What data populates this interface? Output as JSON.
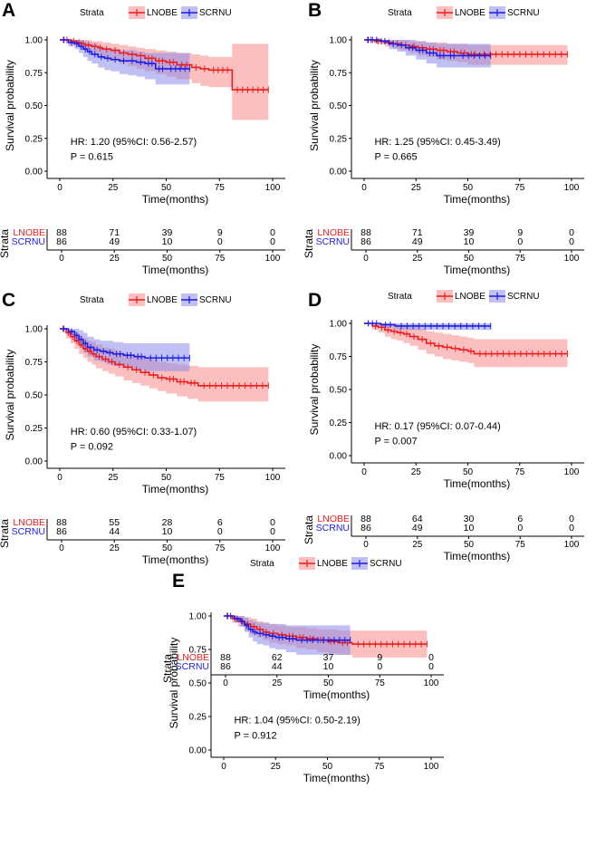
{
  "colors": {
    "lnobe": "#ee1c1c",
    "lnobe_band": "#f88a8a",
    "scrnu": "#1c1ce6",
    "scrnu_band": "#8c8cea",
    "axis": "#000000",
    "text": "#000000"
  },
  "chart_data": [
    {
      "type": "line",
      "panel": "A",
      "legend_title": "Strata",
      "legend_labels": [
        "LNOBE",
        "SCRNU"
      ],
      "xlabel": "Time(months)",
      "ylabel": "Survival probability",
      "xlim": [
        0,
        100
      ],
      "ylim": [
        0,
        1
      ],
      "xticks": [
        0,
        25,
        50,
        75,
        100
      ],
      "yticks": [
        0.0,
        0.25,
        0.5,
        0.75,
        1.0
      ],
      "ytick_labels": [
        "0.00",
        "0.25",
        "0.50",
        "0.75",
        "1.00"
      ],
      "hr_text": "HR: 1.20 (95%CI: 0.56-2.57)",
      "p_text": "P = 0.615",
      "series": [
        {
          "name": "LNOBE",
          "x": [
            0,
            5,
            8,
            10,
            12,
            15,
            18,
            20,
            24,
            28,
            32,
            36,
            40,
            45,
            50,
            55,
            62,
            66,
            70,
            81,
            98
          ],
          "y": [
            1.0,
            0.99,
            0.98,
            0.97,
            0.96,
            0.95,
            0.94,
            0.93,
            0.92,
            0.9,
            0.89,
            0.88,
            0.86,
            0.84,
            0.83,
            0.81,
            0.79,
            0.78,
            0.77,
            0.62,
            0.62
          ],
          "lower": [
            1.0,
            0.97,
            0.95,
            0.93,
            0.91,
            0.9,
            0.88,
            0.86,
            0.84,
            0.82,
            0.8,
            0.78,
            0.76,
            0.74,
            0.72,
            0.7,
            0.67,
            0.65,
            0.64,
            0.39,
            0.39
          ],
          "upper": [
            1.0,
            1.0,
            1.0,
            1.0,
            1.0,
            0.99,
            0.99,
            0.98,
            0.97,
            0.96,
            0.95,
            0.94,
            0.93,
            0.92,
            0.91,
            0.9,
            0.89,
            0.88,
            0.87,
            0.97,
            0.97
          ]
        },
        {
          "name": "SCRNU",
          "x": [
            0,
            4,
            7,
            9,
            11,
            13,
            15,
            18,
            21,
            24,
            28,
            32,
            36,
            40,
            45,
            50,
            61
          ],
          "y": [
            1.0,
            0.98,
            0.97,
            0.95,
            0.93,
            0.91,
            0.89,
            0.87,
            0.86,
            0.85,
            0.84,
            0.84,
            0.83,
            0.82,
            0.78,
            0.78,
            0.78
          ],
          "lower": [
            1.0,
            0.95,
            0.93,
            0.9,
            0.87,
            0.84,
            0.82,
            0.79,
            0.77,
            0.76,
            0.74,
            0.73,
            0.72,
            0.7,
            0.66,
            0.66,
            0.66
          ],
          "upper": [
            1.0,
            1.0,
            1.0,
            1.0,
            0.99,
            0.98,
            0.97,
            0.95,
            0.94,
            0.93,
            0.92,
            0.92,
            0.91,
            0.9,
            0.9,
            0.9,
            0.9
          ]
        }
      ],
      "risk_table": {
        "labels": [
          "LNOBE",
          "SCRNU"
        ],
        "times": [
          0,
          25,
          50,
          75,
          100
        ],
        "rows": [
          [
            "88",
            "71",
            "39",
            "9",
            "0"
          ],
          [
            "86",
            "49",
            "10",
            "0",
            "0"
          ]
        ],
        "ylabel": "Strata",
        "xlabel": "Time(months)"
      }
    },
    {
      "type": "line",
      "panel": "B",
      "legend_title": "Strata",
      "legend_labels": [
        "LNOBE",
        "SCRNU"
      ],
      "xlabel": "Time(months)",
      "ylabel": "Survival probability",
      "xlim": [
        0,
        100
      ],
      "ylim": [
        0,
        1
      ],
      "xticks": [
        0,
        25,
        50,
        75,
        100
      ],
      "yticks": [
        0.0,
        0.25,
        0.5,
        0.75,
        1.0
      ],
      "ytick_labels": [
        "0.00",
        "0.25",
        "0.50",
        "0.75",
        "1.00"
      ],
      "hr_text": "HR: 1.25 (95%CI: 0.45-3.49)",
      "p_text": "P = 0.665",
      "series": [
        {
          "name": "LNOBE",
          "x": [
            0,
            5,
            10,
            14,
            18,
            22,
            26,
            30,
            35,
            40,
            45,
            50,
            55,
            98
          ],
          "y": [
            1.0,
            0.99,
            0.98,
            0.97,
            0.96,
            0.95,
            0.94,
            0.93,
            0.92,
            0.91,
            0.9,
            0.89,
            0.89,
            0.89
          ],
          "lower": [
            1.0,
            0.97,
            0.95,
            0.93,
            0.92,
            0.9,
            0.88,
            0.87,
            0.85,
            0.84,
            0.83,
            0.81,
            0.81,
            0.81
          ],
          "upper": [
            1.0,
            1.0,
            1.0,
            1.0,
            1.0,
            0.99,
            0.99,
            0.98,
            0.98,
            0.97,
            0.97,
            0.96,
            0.96,
            0.96
          ]
        },
        {
          "name": "SCRNU",
          "x": [
            0,
            8,
            12,
            16,
            20,
            25,
            30,
            35,
            40,
            45,
            61
          ],
          "y": [
            1.0,
            0.99,
            0.97,
            0.96,
            0.94,
            0.92,
            0.9,
            0.88,
            0.88,
            0.88,
            0.88
          ],
          "lower": [
            1.0,
            0.97,
            0.93,
            0.91,
            0.88,
            0.85,
            0.82,
            0.79,
            0.79,
            0.79,
            0.79
          ],
          "upper": [
            1.0,
            1.0,
            1.0,
            1.0,
            1.0,
            0.99,
            0.98,
            0.97,
            0.97,
            0.97,
            0.97
          ]
        }
      ],
      "risk_table": {
        "labels": [
          "LNOBE",
          "SCRNU"
        ],
        "times": [
          0,
          25,
          50,
          75,
          100
        ],
        "rows": [
          [
            "88",
            "71",
            "39",
            "9",
            "0"
          ],
          [
            "86",
            "49",
            "10",
            "0",
            "0"
          ]
        ],
        "ylabel": "Strata",
        "xlabel": "Time(months)"
      }
    },
    {
      "type": "line",
      "panel": "C",
      "legend_title": "Strata",
      "legend_labels": [
        "LNOBE",
        "SCRNU"
      ],
      "xlabel": "Time(months)",
      "ylabel": "Survival probability",
      "xlim": [
        0,
        100
      ],
      "ylim": [
        0,
        1
      ],
      "xticks": [
        0,
        25,
        50,
        75,
        100
      ],
      "yticks": [
        0.0,
        0.25,
        0.5,
        0.75,
        1.0
      ],
      "ytick_labels": [
        "0.00",
        "0.25",
        "0.50",
        "0.75",
        "1.00"
      ],
      "hr_text": "HR: 0.60 (95%CI: 0.33-1.07)",
      "p_text": "P = 0.092",
      "series": [
        {
          "name": "LNOBE",
          "x": [
            0,
            3,
            5,
            7,
            9,
            11,
            13,
            15,
            17,
            20,
            23,
            26,
            30,
            34,
            38,
            42,
            46,
            50,
            55,
            60,
            65,
            98
          ],
          "y": [
            1.0,
            0.97,
            0.94,
            0.91,
            0.88,
            0.85,
            0.83,
            0.81,
            0.79,
            0.77,
            0.75,
            0.73,
            0.71,
            0.69,
            0.67,
            0.65,
            0.63,
            0.62,
            0.6,
            0.59,
            0.57,
            0.57
          ],
          "lower": [
            1.0,
            0.93,
            0.89,
            0.85,
            0.81,
            0.78,
            0.75,
            0.73,
            0.7,
            0.68,
            0.66,
            0.64,
            0.61,
            0.59,
            0.57,
            0.55,
            0.53,
            0.51,
            0.49,
            0.47,
            0.45,
            0.45
          ],
          "upper": [
            1.0,
            1.0,
            0.99,
            0.97,
            0.95,
            0.93,
            0.91,
            0.9,
            0.88,
            0.86,
            0.85,
            0.83,
            0.81,
            0.8,
            0.78,
            0.77,
            0.75,
            0.74,
            0.73,
            0.72,
            0.71,
            0.71
          ]
        },
        {
          "name": "SCRNU",
          "x": [
            0,
            4,
            7,
            9,
            11,
            13,
            16,
            19,
            22,
            25,
            30,
            35,
            40,
            61
          ],
          "y": [
            1.0,
            0.98,
            0.95,
            0.92,
            0.89,
            0.86,
            0.84,
            0.83,
            0.82,
            0.81,
            0.8,
            0.79,
            0.78,
            0.78
          ],
          "lower": [
            1.0,
            0.95,
            0.9,
            0.86,
            0.82,
            0.79,
            0.76,
            0.75,
            0.73,
            0.72,
            0.71,
            0.69,
            0.68,
            0.68
          ],
          "upper": [
            1.0,
            1.0,
            1.0,
            0.99,
            0.97,
            0.94,
            0.92,
            0.91,
            0.91,
            0.9,
            0.89,
            0.89,
            0.89,
            0.89
          ]
        }
      ],
      "risk_table": {
        "labels": [
          "LNOBE",
          "SCRNU"
        ],
        "times": [
          0,
          25,
          50,
          75,
          100
        ],
        "rows": [
          [
            "88",
            "55",
            "28",
            "6",
            "0"
          ],
          [
            "86",
            "44",
            "10",
            "0",
            "0"
          ]
        ],
        "ylabel": "Strata",
        "xlabel": "Time(months)"
      }
    },
    {
      "type": "line",
      "panel": "D",
      "legend_title": "Strata",
      "legend_labels": [
        "LNOBE",
        "SCRNU"
      ],
      "xlabel": "Time(months)",
      "ylabel": "Survival probability",
      "xlim": [
        0,
        100
      ],
      "ylim": [
        0,
        1
      ],
      "xticks": [
        0,
        25,
        50,
        75,
        100
      ],
      "yticks": [
        0.0,
        0.25,
        0.5,
        0.75,
        1.0
      ],
      "ytick_labels": [
        "0.00",
        "0.25",
        "0.50",
        "0.75",
        "1.00"
      ],
      "hr_text": "HR: 0.17 (95%CI: 0.07-0.44)",
      "p_text": "P = 0.007",
      "series": [
        {
          "name": "LNOBE",
          "x": [
            0,
            4,
            7,
            10,
            13,
            16,
            19,
            22,
            26,
            30,
            34,
            38,
            42,
            46,
            50,
            53,
            98
          ],
          "y": [
            1.0,
            0.98,
            0.97,
            0.95,
            0.94,
            0.93,
            0.92,
            0.9,
            0.88,
            0.85,
            0.83,
            0.82,
            0.81,
            0.8,
            0.79,
            0.77,
            0.77
          ],
          "lower": [
            1.0,
            0.95,
            0.93,
            0.9,
            0.88,
            0.87,
            0.85,
            0.83,
            0.8,
            0.77,
            0.75,
            0.73,
            0.72,
            0.71,
            0.7,
            0.67,
            0.67
          ],
          "upper": [
            1.0,
            1.0,
            1.0,
            1.0,
            0.99,
            0.99,
            0.98,
            0.97,
            0.96,
            0.94,
            0.93,
            0.92,
            0.91,
            0.9,
            0.89,
            0.88,
            0.88
          ]
        },
        {
          "name": "SCRNU",
          "x": [
            0,
            8,
            15,
            61
          ],
          "y": [
            1.0,
            0.99,
            0.98,
            0.98
          ],
          "lower": [
            1.0,
            0.97,
            0.95,
            0.95
          ],
          "upper": [
            1.0,
            1.0,
            1.0,
            1.0
          ]
        }
      ],
      "risk_table": {
        "labels": [
          "LNOBE",
          "SCRNU"
        ],
        "times": [
          0,
          25,
          50,
          75,
          100
        ],
        "rows": [
          [
            "88",
            "64",
            "30",
            "6",
            "0"
          ],
          [
            "86",
            "49",
            "10",
            "0",
            "0"
          ]
        ],
        "ylabel": "Strata",
        "xlabel": "Time(months)"
      }
    },
    {
      "type": "line",
      "panel": "E",
      "legend_title": "Strata",
      "legend_labels": [
        "LNOBE",
        "SCRNU"
      ],
      "xlabel": "Time(months)",
      "ylabel": "Survival probability",
      "xlim": [
        0,
        100
      ],
      "ylim": [
        0,
        1
      ],
      "xticks": [
        0,
        25,
        50,
        75,
        100
      ],
      "yticks": [
        0.0,
        0.25,
        0.5,
        0.75,
        1.0
      ],
      "ytick_labels": [
        "0.00",
        "0.25",
        "0.50",
        "0.75",
        "1.00"
      ],
      "hr_text": "HR: 1.04 (95%CI: 0.50-2.19)",
      "p_text": "P = 0.912",
      "series": [
        {
          "name": "LNOBE",
          "x": [
            0,
            4,
            7,
            10,
            13,
            16,
            19,
            22,
            26,
            30,
            35,
            40,
            45,
            50,
            55,
            62,
            98
          ],
          "y": [
            1.0,
            0.98,
            0.96,
            0.94,
            0.92,
            0.9,
            0.88,
            0.87,
            0.86,
            0.85,
            0.84,
            0.83,
            0.82,
            0.81,
            0.8,
            0.79,
            0.79
          ],
          "lower": [
            1.0,
            0.95,
            0.92,
            0.89,
            0.86,
            0.84,
            0.82,
            0.8,
            0.79,
            0.78,
            0.76,
            0.75,
            0.73,
            0.72,
            0.71,
            0.69,
            0.69
          ],
          "upper": [
            1.0,
            1.0,
            1.0,
            0.99,
            0.98,
            0.96,
            0.95,
            0.94,
            0.93,
            0.92,
            0.92,
            0.91,
            0.9,
            0.9,
            0.89,
            0.89,
            0.89
          ]
        },
        {
          "name": "SCRNU",
          "x": [
            0,
            5,
            8,
            10,
            12,
            14,
            16,
            19,
            22,
            25,
            30,
            35,
            61
          ],
          "y": [
            1.0,
            0.98,
            0.96,
            0.93,
            0.9,
            0.88,
            0.87,
            0.86,
            0.85,
            0.84,
            0.83,
            0.82,
            0.82
          ],
          "lower": [
            1.0,
            0.95,
            0.92,
            0.88,
            0.84,
            0.81,
            0.79,
            0.78,
            0.76,
            0.75,
            0.73,
            0.71,
            0.71
          ],
          "upper": [
            1.0,
            1.0,
            1.0,
            0.99,
            0.97,
            0.96,
            0.95,
            0.95,
            0.94,
            0.94,
            0.93,
            0.93,
            0.93
          ]
        }
      ],
      "risk_table": {
        "labels": [
          "LNOBE",
          "SCRNU"
        ],
        "times": [
          0,
          25,
          50,
          75,
          100
        ],
        "rows": [
          [
            "88",
            "62",
            "37",
            "9",
            "0"
          ],
          [
            "86",
            "44",
            "10",
            "0",
            "0"
          ]
        ],
        "ylabel": "Strata",
        "xlabel": "Time(months)"
      }
    }
  ]
}
